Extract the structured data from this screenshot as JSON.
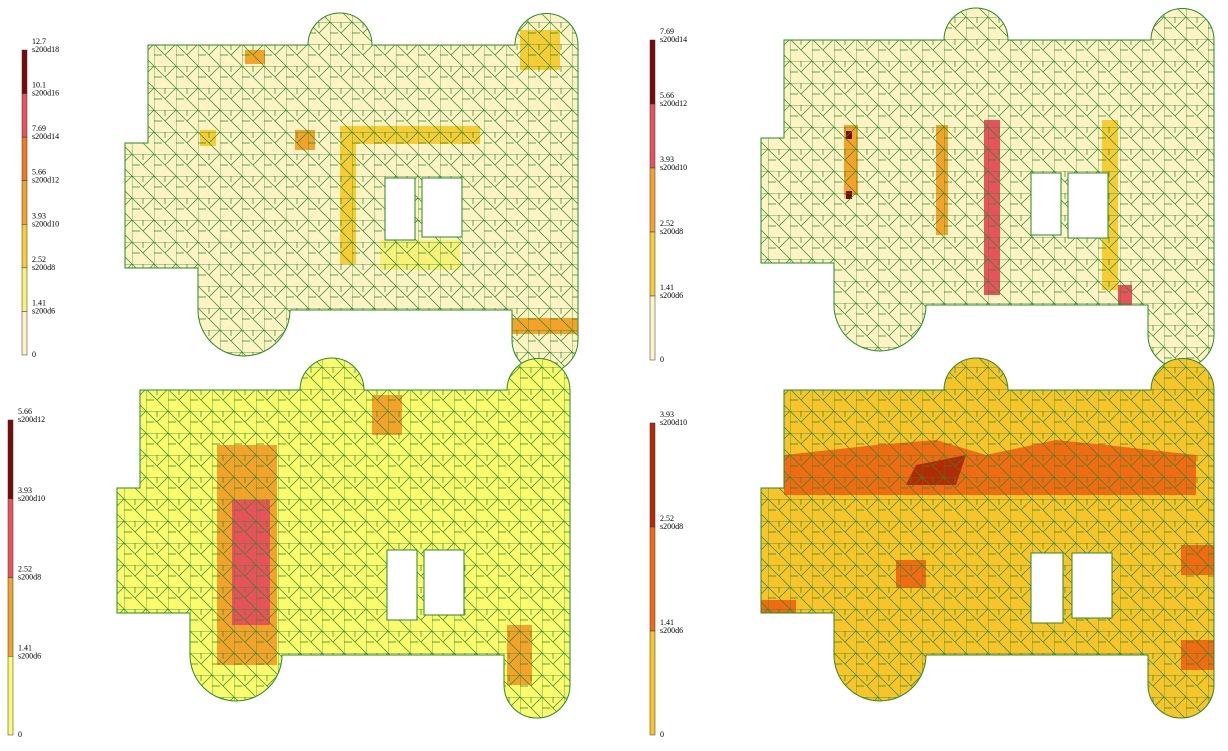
{
  "panels": [
    {
      "legend": [
        {
          "value": 12.7,
          "label": "s200d18",
          "color": "#7a0a0a"
        },
        {
          "value": 10.1,
          "label": "s200d16",
          "color": "#e9525a"
        },
        {
          "value": 7.69,
          "label": "s200d14",
          "color": "#f27a1c"
        },
        {
          "value": 5.66,
          "label": "s200d12",
          "color": "#f5a22a"
        },
        {
          "value": 3.93,
          "label": "s200d10",
          "color": "#f8cc34"
        },
        {
          "value": 2.52,
          "label": "s200d8",
          "color": "#f9f27a"
        },
        {
          "value": 1.41,
          "label": "s200d6",
          "color": "#fdf3c4"
        },
        {
          "value": 0
        }
      ]
    },
    {
      "legend": [
        {
          "value": 7.69,
          "label": "s200d14",
          "color": "#7a0a0a"
        },
        {
          "value": 5.66,
          "label": "s200d12",
          "color": "#e9525a"
        },
        {
          "value": 3.93,
          "label": "s200d10",
          "color": "#f5a22a"
        },
        {
          "value": 2.52,
          "label": "s200d8",
          "color": "#f8cc34"
        },
        {
          "value": 1.41,
          "label": "s200d6",
          "color": "#fdf3c4"
        },
        {
          "value": 0
        }
      ]
    },
    {
      "legend": [
        {
          "value": 5.66,
          "label": "s200d12",
          "color": "#7a0a0a"
        },
        {
          "value": 3.93,
          "label": "s200d10",
          "color": "#e9525a"
        },
        {
          "value": 2.52,
          "label": "s200d8",
          "color": "#f5a22a"
        },
        {
          "value": 1.41,
          "label": "s200d6",
          "color": "#fbfb6e"
        },
        {
          "value": 0
        }
      ]
    },
    {
      "legend": [
        {
          "value": 3.93,
          "label": "s200d10",
          "color": "#b52a05"
        },
        {
          "value": 2.52,
          "label": "s200d8",
          "color": "#f26a12"
        },
        {
          "value": 1.41,
          "label": "s200d6",
          "color": "#f8c42a"
        },
        {
          "value": 0
        }
      ]
    }
  ]
}
